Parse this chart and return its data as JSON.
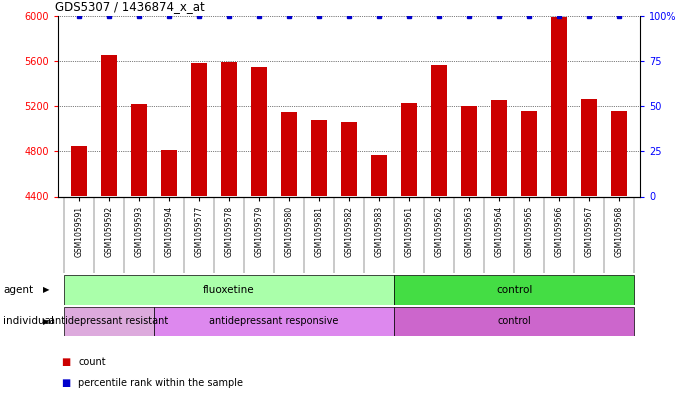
{
  "title": "GDS5307 / 1436874_x_at",
  "samples": [
    "GSM1059591",
    "GSM1059592",
    "GSM1059593",
    "GSM1059594",
    "GSM1059577",
    "GSM1059578",
    "GSM1059579",
    "GSM1059580",
    "GSM1059581",
    "GSM1059582",
    "GSM1059583",
    "GSM1059561",
    "GSM1059562",
    "GSM1059563",
    "GSM1059564",
    "GSM1059565",
    "GSM1059566",
    "GSM1059567",
    "GSM1059568"
  ],
  "counts": [
    4850,
    5650,
    5220,
    4810,
    5580,
    5590,
    5550,
    5150,
    5080,
    5060,
    4770,
    5230,
    5560,
    5200,
    5250,
    5160,
    5990,
    5260,
    5160
  ],
  "percentiles": [
    100,
    100,
    100,
    100,
    100,
    100,
    100,
    100,
    100,
    100,
    100,
    100,
    100,
    100,
    100,
    100,
    100,
    100,
    100
  ],
  "bar_color": "#cc0000",
  "dot_color": "#0000cc",
  "ylim_left": [
    4400,
    6000
  ],
  "ylim_right": [
    0,
    100
  ],
  "yticks_left": [
    4400,
    4800,
    5200,
    5600,
    6000
  ],
  "yticks_right": [
    0,
    25,
    50,
    75,
    100
  ],
  "ytick_labels_right": [
    "0",
    "25",
    "50",
    "75",
    "100%"
  ],
  "grid_values": [
    4800,
    5200,
    5600
  ],
  "agent_groups": [
    {
      "label": "fluoxetine",
      "start": 0,
      "end": 10,
      "color": "#aaffaa"
    },
    {
      "label": "control",
      "start": 11,
      "end": 18,
      "color": "#44dd44"
    }
  ],
  "individual_groups": [
    {
      "label": "antidepressant resistant",
      "start": 0,
      "end": 2,
      "color": "#ddaadd"
    },
    {
      "label": "antidepressant responsive",
      "start": 3,
      "end": 10,
      "color": "#dd88ee"
    },
    {
      "label": "control",
      "start": 11,
      "end": 18,
      "color": "#cc66cc"
    }
  ],
  "legend_items": [
    {
      "label": "count",
      "color": "#cc0000"
    },
    {
      "label": "percentile rank within the sample",
      "color": "#0000cc"
    }
  ]
}
